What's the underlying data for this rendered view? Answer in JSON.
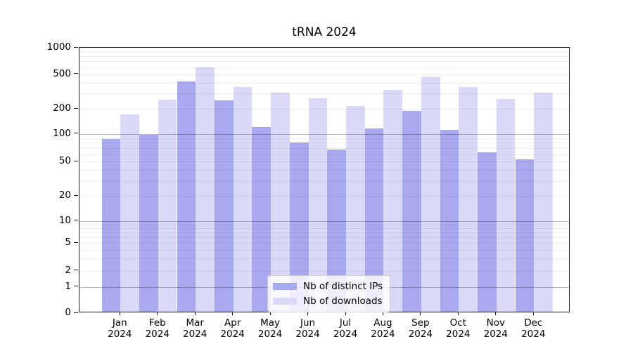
{
  "chart_data": {
    "type": "bar",
    "title": "tRNA 2024",
    "categories": [
      "Jan",
      "Feb",
      "Mar",
      "Apr",
      "May",
      "Jun",
      "Jul",
      "Aug",
      "Sep",
      "Oct",
      "Nov",
      "Dec"
    ],
    "category_year": "2024",
    "series": [
      {
        "name": "Nb of distinct IPs",
        "color": "#a9a9f2",
        "values": [
          85,
          94,
          400,
          240,
          117,
          78,
          65,
          112,
          182,
          108,
          61,
          51
        ]
      },
      {
        "name": "Nb of downloads",
        "color": "#dadaf8",
        "values": [
          165,
          245,
          575,
          345,
          297,
          255,
          209,
          320,
          455,
          343,
          251,
          296
        ]
      }
    ],
    "yscale": "symlog",
    "ylim": [
      0,
      1000
    ],
    "y_ticks": [
      0,
      1,
      2,
      5,
      10,
      20,
      50,
      100,
      200,
      500,
      1000
    ],
    "grid": true,
    "grid_major_values": [
      1,
      10,
      100
    ],
    "grid_minor_values": [
      2,
      5,
      20,
      50,
      200,
      500,
      3,
      4,
      6,
      7,
      8,
      9,
      30,
      40,
      60,
      70,
      80,
      90,
      300,
      400,
      600,
      700,
      800,
      900
    ],
    "legend_position": "lower-center"
  }
}
